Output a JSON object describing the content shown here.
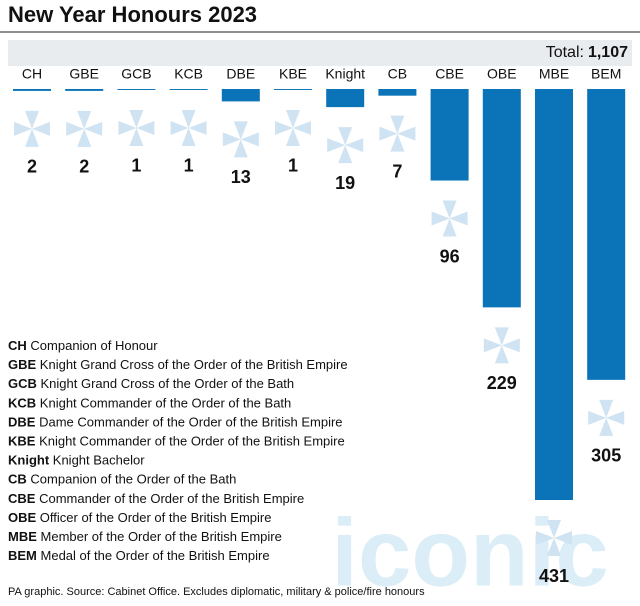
{
  "chart_data": {
    "type": "bar",
    "title": "New Year Honours 2023",
    "total_label": "Total:",
    "total": "1,107",
    "categories": [
      "CH",
      "GBE",
      "GCB",
      "KCB",
      "DBE",
      "KBE",
      "Knight",
      "CB",
      "CBE",
      "OBE",
      "MBE",
      "BEM"
    ],
    "values": [
      2,
      2,
      1,
      1,
      13,
      1,
      19,
      7,
      96,
      229,
      431,
      305
    ],
    "color": "#0b73b7",
    "legend_items": [
      {
        "abbr": "CH",
        "text": "Companion of Honour"
      },
      {
        "abbr": "GBE",
        "text": "Knight Grand Cross of the Order of the British Empire"
      },
      {
        "abbr": "GCB",
        "text": "Knight Grand Cross of the Order of the Bath"
      },
      {
        "abbr": "KCB",
        "text": "Knight Commander of the Order of the Bath"
      },
      {
        "abbr": "DBE",
        "text": "Dame Commander of the Order of the British Empire"
      },
      {
        "abbr": "KBE",
        "text": "Knight Commander of the Order of the British Empire"
      },
      {
        "abbr": "Knight",
        "text": "Knight Bachelor"
      },
      {
        "abbr": "CB",
        "text": "Companion of the Order of the Bath"
      },
      {
        "abbr": "CBE",
        "text": "Commander of the Order of the British Empire"
      },
      {
        "abbr": "OBE",
        "text": "Officer of the Order of the British Empire"
      },
      {
        "abbr": "MBE",
        "text": "Member of the Order of the British Empire"
      },
      {
        "abbr": "BEM",
        "text": "Medal of the Order of the British Empire"
      }
    ],
    "source": "PA graphic. Source: Cabinet Office. Excludes diplomatic, military & police/fire honours",
    "watermark": "iconic"
  }
}
